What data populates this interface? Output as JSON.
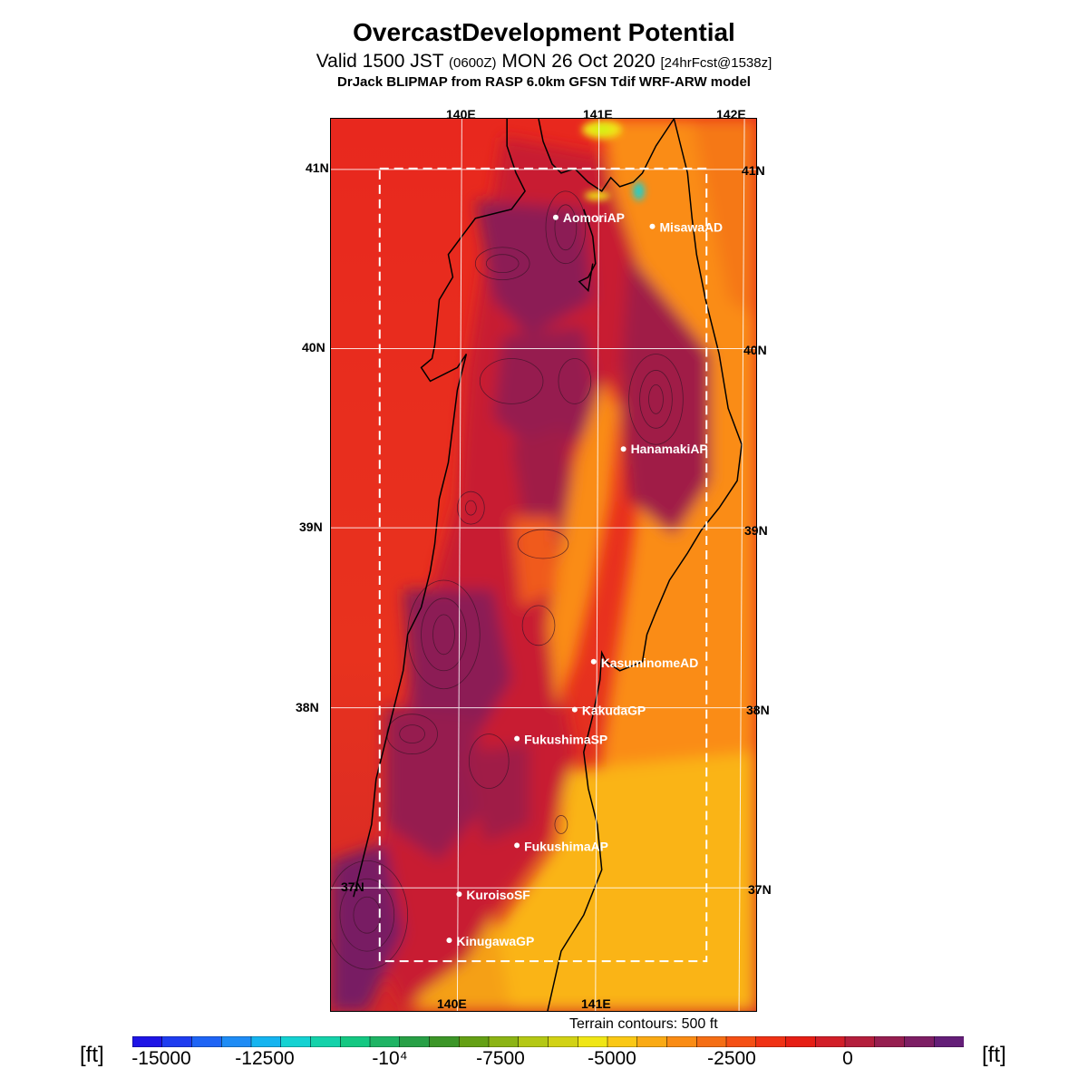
{
  "header": {
    "title": "OvercastDevelopment Potential",
    "valid_prefix": "Valid 1500 JST",
    "valid_z": "(0600Z)",
    "valid_date": "MON 26 Oct 2020",
    "forecast": "[24hrFcst@1538z]",
    "model": "DrJack BLIPMAP from RASP 6.0km GFSN Tdif WRF-ARW model"
  },
  "axes": {
    "top_lon": [
      "140E",
      "141E",
      "142E"
    ],
    "bottom_lon": [
      "140E",
      "141E"
    ],
    "left_lat": [
      "41N",
      "40N",
      "39N",
      "38N",
      "37N"
    ],
    "right_lat": [
      "41N",
      "40N",
      "39N",
      "38N",
      "37N"
    ]
  },
  "stations": [
    {
      "name": "AomoriAP"
    },
    {
      "name": "MisawaAD"
    },
    {
      "name": "HanamakiAP"
    },
    {
      "name": "KasuminomeAD"
    },
    {
      "name": "KakudaGP"
    },
    {
      "name": "FukushimaSP"
    },
    {
      "name": "FukushimaAP"
    },
    {
      "name": "KuroisoSF"
    },
    {
      "name": "KinugawaGP"
    }
  ],
  "terrain_note": "Terrain contours: 500 ft",
  "colorbar": {
    "unit": "[ft]",
    "labels": [
      "-15000",
      "-12500",
      "-10⁴",
      "-7500",
      "-5000",
      "-2500",
      "0"
    ],
    "colors": [
      "#1e14e6",
      "#1e3cf0",
      "#1e64f5",
      "#1e8cf5",
      "#14b4f0",
      "#14d2d2",
      "#14d2aa",
      "#14c882",
      "#1eb464",
      "#28a046",
      "#3c9628",
      "#64a014",
      "#8cb414",
      "#b4c814",
      "#d2d214",
      "#f0e614",
      "#fac814",
      "#faaa14",
      "#fa8c14",
      "#f56e14",
      "#f55014",
      "#f03214",
      "#e61e14",
      "#d21e28",
      "#b41e3c",
      "#961e50",
      "#7d1e64",
      "#641e78"
    ]
  },
  "colors": {
    "sea_base": "#f03c14",
    "land_high": "#8c1e50",
    "land_mid": "#c81e28",
    "south_east": "#fab414",
    "orange": "#fa8c14"
  }
}
